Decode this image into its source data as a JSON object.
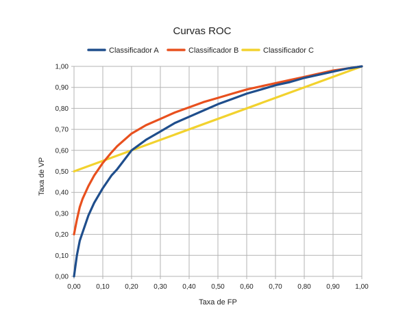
{
  "chart_data": {
    "type": "line",
    "title": "Curvas ROC",
    "xlabel": "Taxa de FP",
    "ylabel": "Taxa de VP",
    "xlim": [
      0,
      1
    ],
    "ylim": [
      0,
      1
    ],
    "x_ticks": [
      "0,00",
      "0,10",
      "0,20",
      "0,30",
      "0,40",
      "0,50",
      "0,60",
      "0,70",
      "0,80",
      "0,90",
      "1,00"
    ],
    "y_ticks": [
      "0,00",
      "0,10",
      "0,20",
      "0,30",
      "0,40",
      "0,50",
      "0,60",
      "0,70",
      "0,80",
      "0,90",
      "1,00"
    ],
    "grid": true,
    "legend_position": "top",
    "series": [
      {
        "name": "Classificador A",
        "color": "#1f4e8c",
        "x": [
          0,
          0.005,
          0.01,
          0.02,
          0.03,
          0.05,
          0.07,
          0.1,
          0.13,
          0.15,
          0.2,
          0.25,
          0.3,
          0.35,
          0.4,
          0.45,
          0.5,
          0.55,
          0.6,
          0.65,
          0.7,
          0.75,
          0.8,
          0.85,
          0.9,
          0.95,
          1.0
        ],
        "y": [
          0,
          0.05,
          0.1,
          0.17,
          0.21,
          0.29,
          0.35,
          0.42,
          0.48,
          0.51,
          0.6,
          0.65,
          0.69,
          0.73,
          0.76,
          0.79,
          0.82,
          0.845,
          0.87,
          0.89,
          0.91,
          0.925,
          0.945,
          0.96,
          0.975,
          0.99,
          1.0
        ]
      },
      {
        "name": "Classificador B",
        "color": "#e8501e",
        "x": [
          0,
          0.01,
          0.02,
          0.03,
          0.05,
          0.07,
          0.1,
          0.13,
          0.15,
          0.2,
          0.25,
          0.3,
          0.35,
          0.4,
          0.45,
          0.5,
          0.55,
          0.6,
          0.65,
          0.7,
          0.75,
          0.8,
          0.85,
          0.9,
          0.95,
          1.0
        ],
        "y": [
          0.2,
          0.27,
          0.33,
          0.37,
          0.43,
          0.48,
          0.54,
          0.59,
          0.62,
          0.68,
          0.72,
          0.75,
          0.78,
          0.805,
          0.83,
          0.85,
          0.87,
          0.89,
          0.905,
          0.92,
          0.935,
          0.95,
          0.965,
          0.98,
          0.99,
          1.0
        ]
      },
      {
        "name": "Classificador C",
        "color": "#f2d22e",
        "x": [
          0,
          1.0
        ],
        "y": [
          0.5,
          1.0
        ]
      }
    ]
  }
}
